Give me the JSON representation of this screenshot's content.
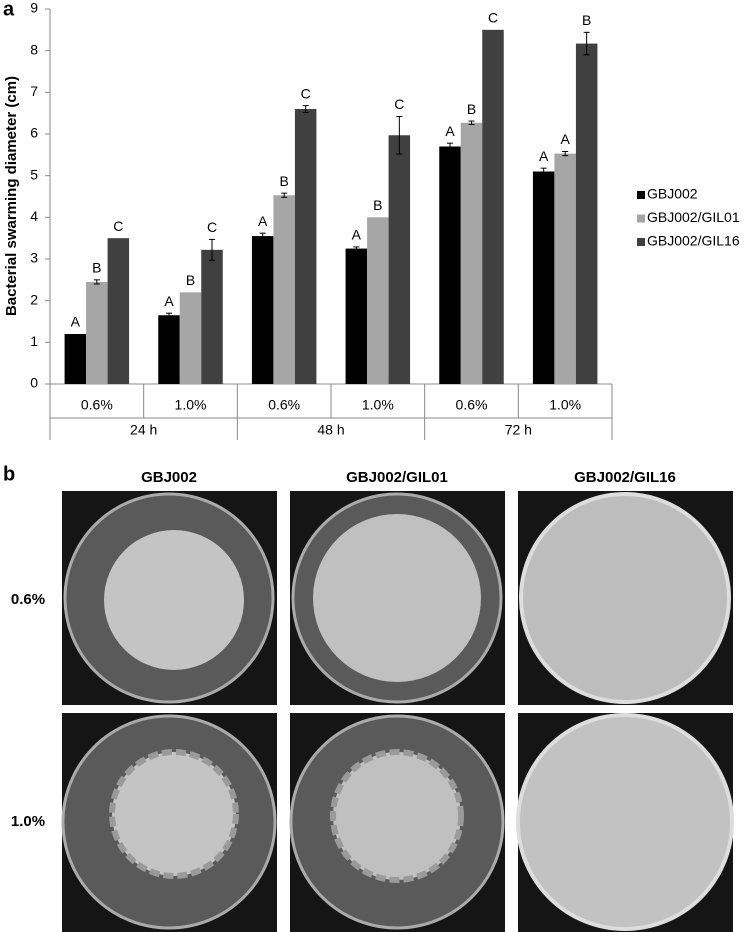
{
  "chart_data": {
    "type": "bar",
    "panel_label": "a",
    "y_label": "Bacterial swarming diameter (cm)",
    "categories": [
      "0.6%",
      "1.0%",
      "0.6%",
      "1.0%",
      "0.6%",
      "1.0%"
    ],
    "groups": [
      "24 h",
      "48 h",
      "72 h"
    ],
    "ylim": [
      0,
      9
    ],
    "yticks": [
      0,
      1,
      2,
      3,
      4,
      5,
      6,
      7,
      8,
      9
    ],
    "grid": false,
    "legend": "right",
    "series": [
      {
        "name": "GBJ002",
        "color": "#000000",
        "values": [
          1.2,
          1.65,
          3.55,
          3.25,
          5.7,
          5.1
        ],
        "errors": [
          null,
          0.05,
          0.07,
          0.04,
          0.08,
          0.08
        ],
        "letters": [
          "A",
          "A",
          "A",
          "A",
          "A",
          "A"
        ]
      },
      {
        "name": "GBJ002/GIL01",
        "color": "#a6a6a6",
        "values": [
          2.45,
          2.2,
          4.53,
          4.0,
          6.27,
          5.53
        ],
        "errors": [
          0.05,
          null,
          0.05,
          null,
          0.04,
          0.05
        ],
        "letters": [
          "B",
          "B",
          "B",
          "B",
          "B",
          "A"
        ]
      },
      {
        "name": "GBJ002/GIL16",
        "color": "#404040",
        "values": [
          3.5,
          3.22,
          6.6,
          5.97,
          8.5,
          8.17
        ],
        "errors": [
          null,
          0.25,
          0.08,
          0.45,
          null,
          0.27
        ],
        "letters": [
          "C",
          "C",
          "C",
          "C",
          "C",
          "B"
        ]
      }
    ]
  },
  "panel_b": {
    "label": "b",
    "columns": [
      "GBJ002",
      "GBJ002/GIL01",
      "GBJ002/GIL16"
    ],
    "rows": [
      "0.6%",
      "1.0%"
    ]
  }
}
